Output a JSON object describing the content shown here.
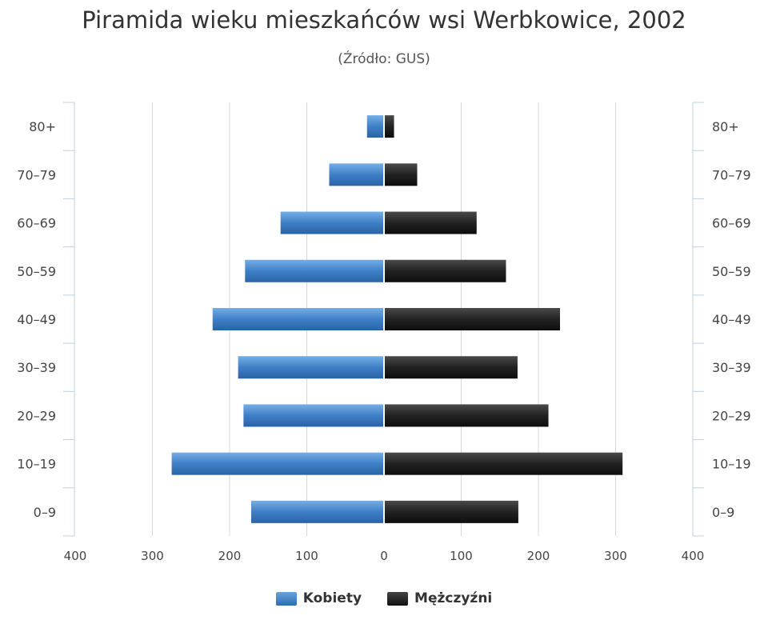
{
  "chart_data": {
    "type": "bar",
    "orientation": "horizontal",
    "layout": "population-pyramid",
    "title": "Piramida wieku mieszkańców wsi Werbkowice, 2002",
    "subtitle": "(Źródło: GUS)",
    "categories": [
      "0–9",
      "10–19",
      "20–29",
      "30–39",
      "40–49",
      "50–59",
      "60–69",
      "70–79",
      "80+"
    ],
    "series": [
      {
        "name": "Kobiety",
        "values": [
          172,
          275,
          182,
          189,
          222,
          180,
          134,
          71,
          22
        ],
        "color": "#3d7cc4"
      },
      {
        "name": "Mężczyźni",
        "values": [
          174,
          309,
          213,
          173,
          228,
          158,
          120,
          43,
          13
        ],
        "color": "#1b1b1b"
      }
    ],
    "xlim": [
      -400,
      400
    ],
    "x_ticks": [
      "400",
      "300",
      "200",
      "100",
      "0",
      "100",
      "200",
      "300",
      "400"
    ],
    "grid": true,
    "legend_position": "bottom-center"
  }
}
